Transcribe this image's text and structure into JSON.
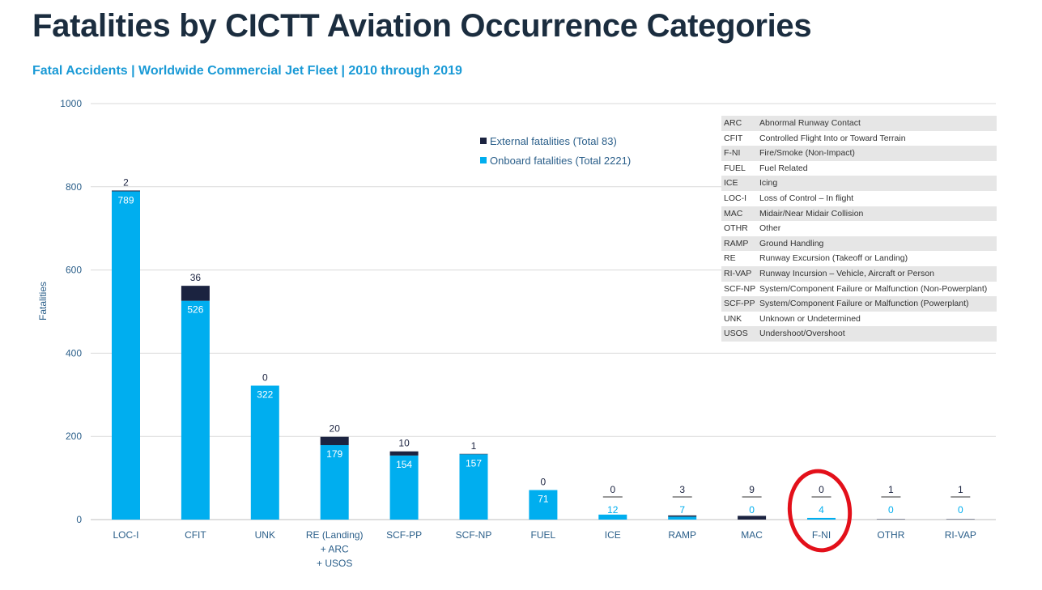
{
  "title": "Fatalities by CICTT Aviation Occurrence Categories",
  "subtitle": "Fatal Accidents | Worldwide Commercial Jet Fleet | 2010 through 2019",
  "colors": {
    "onboard": "#00aeef",
    "external": "#1b2340",
    "annotation_circle": "#e3101a"
  },
  "chart_data": {
    "type": "bar",
    "stacked": true,
    "ylabel": "Fatalities",
    "xlabel": "",
    "ylim": [
      0,
      1000
    ],
    "yticks": [
      0,
      200,
      400,
      600,
      800,
      1000
    ],
    "grid": true,
    "legend_position": "top-center",
    "categories": [
      [
        "LOC-I"
      ],
      [
        "CFIT"
      ],
      [
        "UNK"
      ],
      [
        "RE (Landing)",
        "+ ARC",
        "+ USOS"
      ],
      [
        "SCF-PP"
      ],
      [
        "SCF-NP"
      ],
      [
        "FUEL"
      ],
      [
        "ICE"
      ],
      [
        "RAMP"
      ],
      [
        "MAC"
      ],
      [
        "F-NI"
      ],
      [
        "OTHR"
      ],
      [
        "RI-VAP"
      ]
    ],
    "series": [
      {
        "name": "Onboard fatalities (Total 2221)",
        "values": [
          789,
          526,
          322,
          179,
          154,
          157,
          71,
          12,
          7,
          0,
          4,
          0,
          0
        ]
      },
      {
        "name": "External fatalities (Total 83)",
        "values": [
          2,
          36,
          0,
          20,
          10,
          1,
          0,
          0,
          3,
          9,
          0,
          1,
          1
        ]
      }
    ],
    "annotations": [
      {
        "type": "circle",
        "category": "F-NI"
      }
    ]
  },
  "abbreviations": [
    {
      "code": "ARC",
      "desc": "Abnormal Runway Contact"
    },
    {
      "code": "CFIT",
      "desc": "Controlled Flight Into or Toward Terrain"
    },
    {
      "code": "F-NI",
      "desc": "Fire/Smoke (Non-Impact)"
    },
    {
      "code": "FUEL",
      "desc": "Fuel Related"
    },
    {
      "code": "ICE",
      "desc": "Icing"
    },
    {
      "code": "LOC-I",
      "desc": "Loss of Control – In flight"
    },
    {
      "code": "MAC",
      "desc": "Midair/Near Midair Collision"
    },
    {
      "code": "OTHR",
      "desc": "Other"
    },
    {
      "code": "RAMP",
      "desc": "Ground Handling"
    },
    {
      "code": "RE",
      "desc": "Runway Excursion (Takeoff or Landing)"
    },
    {
      "code": "RI-VAP",
      "desc": "Runway Incursion – Vehicle, Aircraft or Person"
    },
    {
      "code": "SCF-NP",
      "desc": "System/Component Failure or Malfunction (Non-Powerplant)"
    },
    {
      "code": "SCF-PP",
      "desc": "System/Component Failure or Malfunction (Powerplant)"
    },
    {
      "code": "UNK",
      "desc": "Unknown or Undetermined"
    },
    {
      "code": "USOS",
      "desc": "Undershoot/Overshoot"
    }
  ]
}
